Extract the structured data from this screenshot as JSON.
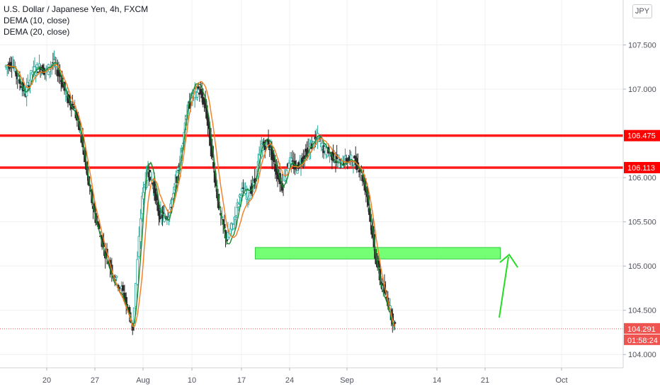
{
  "legend": {
    "symbol": "U.S. Dollar / Japanese Yen, 4h, FXCM",
    "dema_fast": "DEMA (10, close)",
    "dema_slow": "DEMA (20, close)"
  },
  "currency": "JPY",
  "colors": {
    "up": "#26a69a",
    "down": "#ef5350",
    "candle_body": "#2b2b2b",
    "dema_fast": "#1b8a2f",
    "dema_slow": "#f57c1f",
    "level_line": "#ff1a1a",
    "zone_fill": "#66ff66",
    "arrow": "#22dd22",
    "grid": "#eef0f3",
    "current_price_tag": "#ef5350",
    "level_tag": "#ff0000"
  },
  "price_axis": {
    "ticks": [
      "107.500",
      "107.000",
      "106.000",
      "105.500",
      "105.000",
      "104.500",
      "104.000"
    ],
    "level_tags": [
      "106.475",
      "106.113"
    ],
    "current_price": "104.291",
    "countdown": "01:58:24"
  },
  "time_axis": {
    "ticks": [
      "20",
      "27",
      "Aug",
      "10",
      "17",
      "24",
      "Sep",
      "14",
      "21",
      "Oct"
    ]
  },
  "chart_data": {
    "type": "candlestick",
    "title": "U.S. Dollar / Japanese Yen, 4h, FXCM",
    "timeframe": "4h",
    "x_axis_ticks": [
      "20",
      "27",
      "Aug",
      "10",
      "17",
      "24",
      "Sep",
      "14",
      "21",
      "Oct"
    ],
    "y_axis_ticks": [
      107.5,
      107.0,
      106.0,
      105.5,
      105.0,
      104.5,
      104.0
    ],
    "ylim": [
      103.85,
      108.0
    ],
    "grid": true,
    "indicators": [
      "DEMA (10, close)",
      "DEMA (20, close)"
    ],
    "horizontal_levels": [
      106.475,
      106.113
    ],
    "current_price": 104.291,
    "support_zone": {
      "from_date": "Aug 19",
      "to_date": "Sep 23",
      "low": 105.08,
      "high": 105.21
    },
    "price_path": [
      {
        "date": "Jul 14",
        "price": 107.25
      },
      {
        "date": "Jul 15",
        "price": 107.3
      },
      {
        "date": "Jul 16",
        "price": 107.1
      },
      {
        "date": "Jul 17",
        "price": 106.95
      },
      {
        "date": "Jul 18",
        "price": 107.2
      },
      {
        "date": "Jul 19",
        "price": 107.25
      },
      {
        "date": "Jul 20",
        "price": 107.2
      },
      {
        "date": "Jul 21",
        "price": 107.3
      },
      {
        "date": "Jul 22",
        "price": 107.15
      },
      {
        "date": "Jul 23",
        "price": 106.9
      },
      {
        "date": "Jul 24",
        "price": 106.8
      },
      {
        "date": "Jul 25",
        "price": 106.5
      },
      {
        "date": "Jul 26",
        "price": 106.0
      },
      {
        "date": "Jul 27",
        "price": 105.6
      },
      {
        "date": "Jul 28",
        "price": 105.2
      },
      {
        "date": "Jul 29",
        "price": 104.9
      },
      {
        "date": "Jul 30",
        "price": 104.7
      },
      {
        "date": "Jul 31",
        "price": 104.3
      },
      {
        "date": "Aug 1",
        "price": 105.8
      },
      {
        "date": "Aug 2",
        "price": 106.1
      },
      {
        "date": "Aug 3",
        "price": 105.9
      },
      {
        "date": "Aug 4",
        "price": 105.6
      },
      {
        "date": "Aug 5",
        "price": 105.55
      },
      {
        "date": "Aug 6",
        "price": 105.6
      },
      {
        "date": "Aug 7",
        "price": 105.9
      },
      {
        "date": "Aug 8",
        "price": 106.2
      },
      {
        "date": "Aug 9",
        "price": 106.7
      },
      {
        "date": "Aug 10",
        "price": 106.9
      },
      {
        "date": "Aug 11",
        "price": 107.0
      },
      {
        "date": "Aug 12",
        "price": 106.8
      },
      {
        "date": "Aug 13",
        "price": 106.2
      },
      {
        "date": "Aug 14",
        "price": 105.6
      },
      {
        "date": "Aug 15",
        "price": 105.3
      },
      {
        "date": "Aug 16",
        "price": 105.5
      },
      {
        "date": "Aug 17",
        "price": 105.85
      },
      {
        "date": "Aug 18",
        "price": 105.8
      },
      {
        "date": "Aug 19",
        "price": 105.95
      },
      {
        "date": "Aug 20",
        "price": 106.35
      },
      {
        "date": "Aug 21",
        "price": 106.4
      },
      {
        "date": "Aug 22",
        "price": 106.1
      },
      {
        "date": "Aug 23",
        "price": 105.9
      },
      {
        "date": "Aug 24",
        "price": 106.2
      },
      {
        "date": "Aug 25",
        "price": 106.1
      },
      {
        "date": "Aug 26",
        "price": 106.25
      },
      {
        "date": "Aug 27",
        "price": 106.35
      },
      {
        "date": "Aug 28",
        "price": 106.45
      },
      {
        "date": "Aug 29",
        "price": 106.3
      },
      {
        "date": "Aug 30",
        "price": 106.25
      },
      {
        "date": "Aug 31",
        "price": 106.15
      },
      {
        "date": "Sep 1",
        "price": 106.2
      },
      {
        "date": "Sep 2",
        "price": 106.2
      },
      {
        "date": "Sep 3",
        "price": 106.1
      },
      {
        "date": "Sep 4",
        "price": 105.8
      },
      {
        "date": "Sep 5",
        "price": 105.2
      },
      {
        "date": "Sep 6",
        "price": 104.8
      },
      {
        "date": "Sep 7",
        "price": 104.6
      },
      {
        "date": "Sep 8",
        "price": 104.3
      }
    ]
  }
}
